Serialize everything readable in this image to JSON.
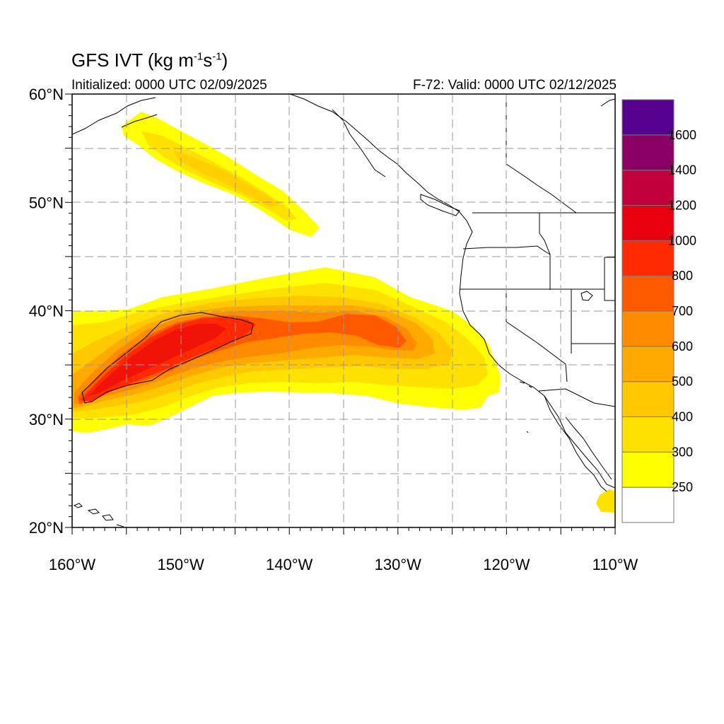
{
  "header": {
    "title_main": "GFS IVT (kg m",
    "title_sup1": "-1",
    "title_mid": "s",
    "title_sup2": "-1",
    "title_end": ")",
    "initialized": "Initialized: 0000 UTC 02/09/2025",
    "valid": "F-72: Valid: 0000 UTC 02/12/2025"
  },
  "map": {
    "projection": "cylindrical equidistant",
    "lon_range": [
      -160,
      -110
    ],
    "lat_range": [
      20,
      60
    ],
    "gridlines": "dashed every 5 degrees",
    "lat_ticks": [
      {
        "value": 20,
        "label": "20°N"
      },
      {
        "value": 30,
        "label": "30°N"
      },
      {
        "value": 40,
        "label": "40°N"
      },
      {
        "value": 50,
        "label": "50°N"
      },
      {
        "value": 60,
        "label": "60°N"
      }
    ],
    "lon_ticks": [
      {
        "value": -160,
        "label": "160°W"
      },
      {
        "value": -150,
        "label": "150°W"
      },
      {
        "value": -140,
        "label": "140°W"
      },
      {
        "value": -130,
        "label": "130°W"
      },
      {
        "value": -120,
        "label": "120°W"
      },
      {
        "value": -110,
        "label": "110°W"
      }
    ],
    "contour_value": 1000
  },
  "colorbar": {
    "levels": [
      250,
      300,
      400,
      500,
      600,
      700,
      800,
      1000,
      1200,
      1400,
      1600
    ],
    "labels": [
      "250",
      "300",
      "400",
      "500",
      "600",
      "700",
      "800",
      "1000",
      "1200",
      "1400",
      "1600"
    ],
    "colors": [
      "#ffffff",
      "#ffff00",
      "#ffe100",
      "#ffc800",
      "#ffaa00",
      "#ff8c00",
      "#ff5a00",
      "#ff2a00",
      "#e8000f",
      "#c2003c",
      "#8b0064",
      "#55008f"
    ]
  },
  "ivt_features": [
    {
      "name": "main atmospheric river",
      "max_ivt": 1050,
      "lon_span": [
        -160,
        -121
      ],
      "lat_span": [
        28.5,
        40.5
      ]
    },
    {
      "name": "northern plume",
      "max_ivt": 420,
      "lon_span": [
        -155,
        -137
      ],
      "lat_span": [
        47,
        57
      ]
    },
    {
      "name": "southern patch",
      "max_ivt": 300,
      "lon_span": [
        -111.5,
        -110
      ],
      "lat_span": [
        21.5,
        23.5
      ]
    }
  ]
}
